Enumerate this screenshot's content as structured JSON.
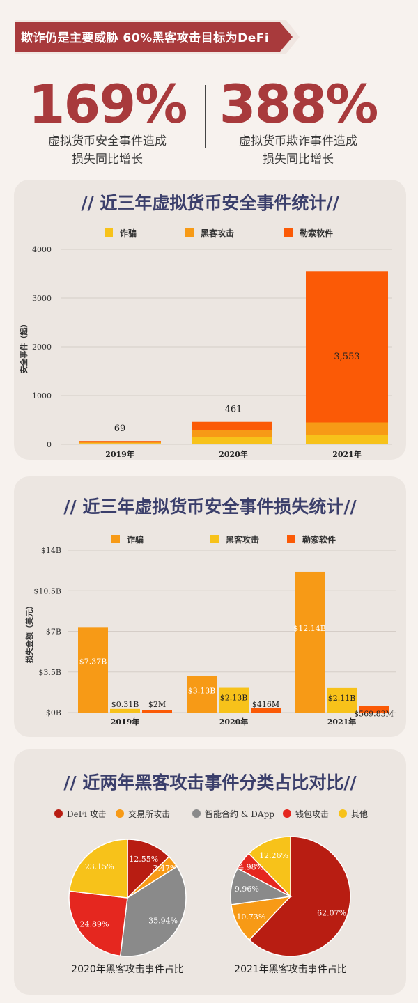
{
  "header": {
    "banner": "欺诈仍是主要威胁 60%黑客攻击目标为DeFi",
    "stats": [
      {
        "value": "169%",
        "desc_line1": "虚拟货币安全事件造成",
        "desc_line2": "损失同比增长"
      },
      {
        "value": "388%",
        "desc_line1": "虚拟货币欺诈事件造成",
        "desc_line2": "损失同比增长"
      }
    ]
  },
  "colors": {
    "accent_red": "#a83a3c",
    "title_navy": "#3b3f6b",
    "yellow": "#f7c21a",
    "orange": "#f79a16",
    "red_orange": "#fb5a06",
    "dark_red": "#b81d12",
    "gray": "#8a8a8a",
    "red": "#e5271f"
  },
  "chart_data": [
    {
      "type": "bar",
      "title": "// 近三年虚拟货币安全事件统计//",
      "ylabel": "安全事件（起）",
      "categories": [
        "2019年",
        "2020年",
        "2021年"
      ],
      "legend": [
        "诈骗",
        "黑客攻击",
        "勒索软件"
      ],
      "series": [
        {
          "name": "诈骗",
          "values": [
            25,
            150,
            190
          ]
        },
        {
          "name": "黑客攻击",
          "values": [
            30,
            150,
            260
          ]
        },
        {
          "name": "勒索软件",
          "values": [
            14,
            161,
            3103
          ]
        }
      ],
      "totals": [
        69,
        461,
        3553
      ],
      "total_labels": [
        "69",
        "461",
        "3,553"
      ],
      "yticks": [
        "0",
        "1000",
        "2000",
        "3000",
        "4000"
      ],
      "ylim": [
        0,
        4000
      ],
      "stacked": true
    },
    {
      "type": "bar",
      "title": "// 近三年虚拟货币安全事件损失统计//",
      "ylabel": "损失金额（美元）",
      "categories": [
        "2019年",
        "2020年",
        "2021年"
      ],
      "legend": [
        "诈骗",
        "黑客攻击",
        "勒索软件"
      ],
      "series": [
        {
          "name": "诈骗",
          "values": [
            7.37,
            3.13,
            12.14
          ],
          "labels": [
            "$7.37B",
            "$3.13B",
            "$12.14B"
          ]
        },
        {
          "name": "黑客攻击",
          "values": [
            0.31,
            2.13,
            2.11
          ],
          "labels": [
            "$0.31B",
            "$2.13B",
            "$2.11B"
          ]
        },
        {
          "name": "勒索软件",
          "values": [
            0.002,
            0.416,
            0.56983
          ],
          "labels": [
            "$2M",
            "$416M",
            "$569.83M"
          ]
        }
      ],
      "yticks": [
        "$0B",
        "$3.5B",
        "$7B",
        "$10.5B",
        "$14B"
      ],
      "ylim": [
        0,
        14
      ]
    },
    {
      "type": "pie",
      "title": "// 近两年黑客攻击事件分类占比对比//",
      "legend": [
        "DeFi 攻击",
        "交易所攻击",
        "智能合约 & DApp",
        "钱包攻击",
        "其他"
      ],
      "pies": [
        {
          "label": "2020年黑客攻击事件占比",
          "values": [
            12.55,
            3.47,
            35.94,
            24.89,
            23.15
          ],
          "value_labels": [
            "12.55%",
            "3.47%",
            "35.94%",
            "24.89%",
            "23.15%"
          ]
        },
        {
          "label": "2021年黑客攻击事件占比",
          "values": [
            62.07,
            10.73,
            9.96,
            4.98,
            12.26
          ],
          "value_labels": [
            "62.07%",
            "10.73%",
            "9.96%",
            "4.98%",
            "12.26%"
          ]
        }
      ]
    }
  ]
}
